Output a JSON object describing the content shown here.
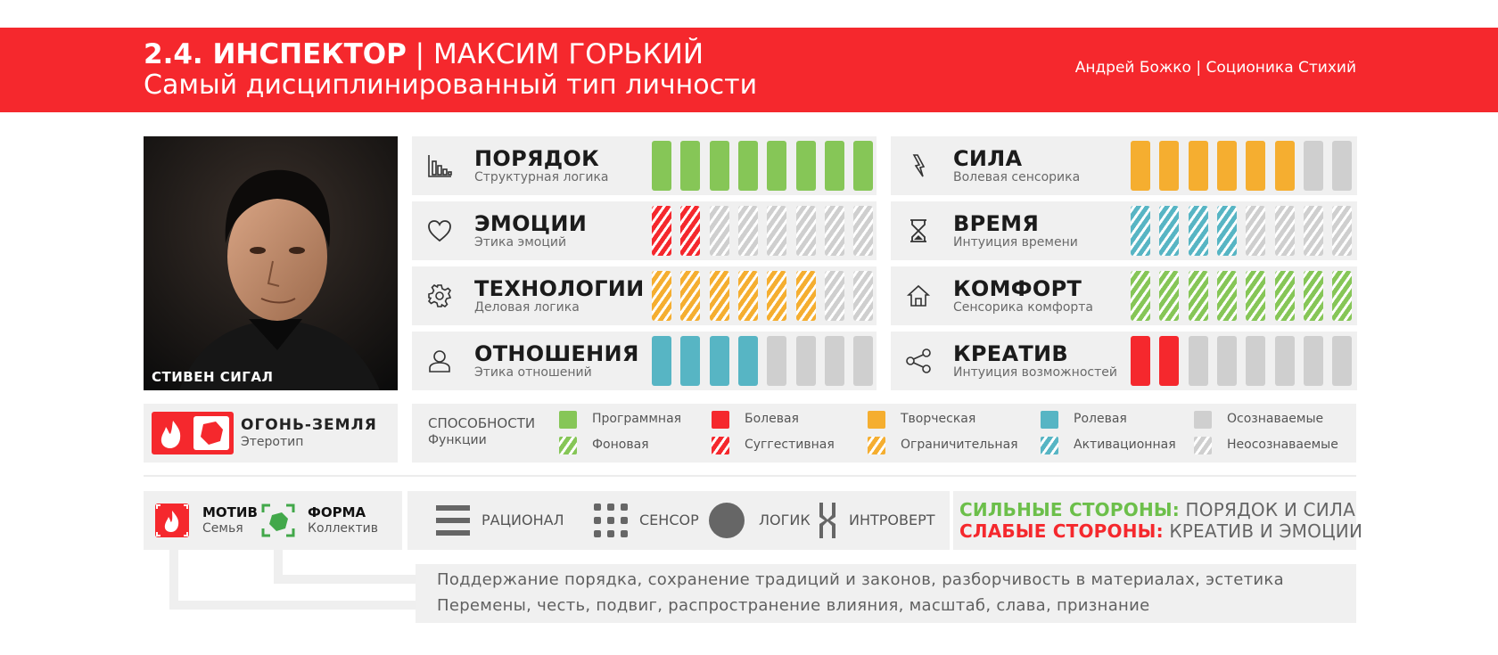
{
  "header": {
    "title_bold": "2.4. ИНСПЕКТОР",
    "title_rest": " | МАКСИМ ГОРЬКИЙ",
    "subtitle": "Самый дисциплинированный тип личности",
    "author": "Андрей Божко | Соционика Стихий"
  },
  "photo": {
    "caption": "СТИВЕН СИГАЛ"
  },
  "aspects_left": [
    {
      "name": "ПОРЯДОК",
      "sub": "Структурная логика",
      "icon": "bar-chart-icon",
      "bars": [
        "green",
        "green",
        "green",
        "green",
        "green",
        "green",
        "green",
        "green"
      ]
    },
    {
      "name": "ЭМОЦИИ",
      "sub": "Этика эмоций",
      "icon": "heart-icon",
      "bars": [
        "h-red",
        "h-red",
        "h-grey",
        "h-grey",
        "h-grey",
        "h-grey",
        "h-grey",
        "h-grey"
      ]
    },
    {
      "name": "ТЕХНОЛОГИИ",
      "sub": "Деловая логика",
      "icon": "gear-icon",
      "bars": [
        "h-yellow",
        "h-yellow",
        "h-yellow",
        "h-yellow",
        "h-yellow",
        "h-yellow",
        "h-grey",
        "h-grey"
      ]
    },
    {
      "name": "ОТНОШЕНИЯ",
      "sub": "Этика отношений",
      "icon": "user-icon",
      "bars": [
        "teal",
        "teal",
        "teal",
        "teal",
        "grey",
        "grey",
        "grey",
        "grey"
      ]
    }
  ],
  "aspects_right": [
    {
      "name": "СИЛА",
      "sub": "Волевая сенсорика",
      "icon": "lightning-icon",
      "bars": [
        "yellow",
        "yellow",
        "yellow",
        "yellow",
        "yellow",
        "yellow",
        "grey",
        "grey"
      ]
    },
    {
      "name": "ВРЕМЯ",
      "sub": "Интуиция времени",
      "icon": "hourglass-icon",
      "bars": [
        "h-teal",
        "h-teal",
        "h-teal",
        "h-teal",
        "h-grey",
        "h-grey",
        "h-grey",
        "h-grey"
      ]
    },
    {
      "name": "КОМФОРТ",
      "sub": "Сенсорика комфорта",
      "icon": "home-icon",
      "bars": [
        "h-green",
        "h-green",
        "h-green",
        "h-green",
        "h-green",
        "h-green",
        "h-green",
        "h-green"
      ]
    },
    {
      "name": "КРЕАТИВ",
      "sub": "Интуиция возможностей",
      "icon": "share-icon",
      "bars": [
        "red",
        "red",
        "grey",
        "grey",
        "grey",
        "grey",
        "grey",
        "grey"
      ]
    }
  ],
  "element": {
    "name": "ОГОНЬ-ЗЕМЛЯ",
    "sub": "Этеротип"
  },
  "legend": {
    "title": "СПОСОБНОСТИ",
    "subtitle": "Функции",
    "items": [
      {
        "label": "Программная",
        "style": "green"
      },
      {
        "label": "Фоновая",
        "style": "h-green"
      },
      {
        "label": "Болевая",
        "style": "red"
      },
      {
        "label": "Суггестивная",
        "style": "h-red"
      },
      {
        "label": "Творческая",
        "style": "yellow"
      },
      {
        "label": "Ограничительная",
        "style": "h-yellow"
      },
      {
        "label": "Ролевая",
        "style": "teal"
      },
      {
        "label": "Активационная",
        "style": "h-teal"
      },
      {
        "label": "Осознаваемые",
        "style": "grey"
      },
      {
        "label": "Неосознаваемые",
        "style": "h-grey"
      }
    ]
  },
  "motive": {
    "label": "МОТИВ",
    "sub": "Семья"
  },
  "form": {
    "label": "ФОРМА",
    "sub": "Коллектив"
  },
  "traits": [
    "РАЦИОНАЛ",
    "СЕНСОР",
    "ЛОГИК",
    "ИНТРОВЕРТ"
  ],
  "strengths": {
    "strong_label": "СИЛЬНЫЕ СТОРОНЫ:",
    "strong_value": " ПОРЯДОК И СИЛА",
    "weak_label": "СЛАБЫЕ СТОРОНЫ:",
    "weak_value": " КРЕАТИВ И ЭМОЦИИ"
  },
  "descriptions": {
    "line1": "Поддержание порядка, сохранение традиций и законов, разборчивость в материалах, эстетика",
    "line2": "Перемены, честь, подвиг, распространение влияния, масштаб, слава, признание"
  },
  "colors": {
    "accent_red": "#f5282d",
    "green": "#86c657",
    "yellow": "#f5ae30",
    "teal": "#57b5c4",
    "grey": "#cfcfcf",
    "panel": "#f0f0f0"
  }
}
